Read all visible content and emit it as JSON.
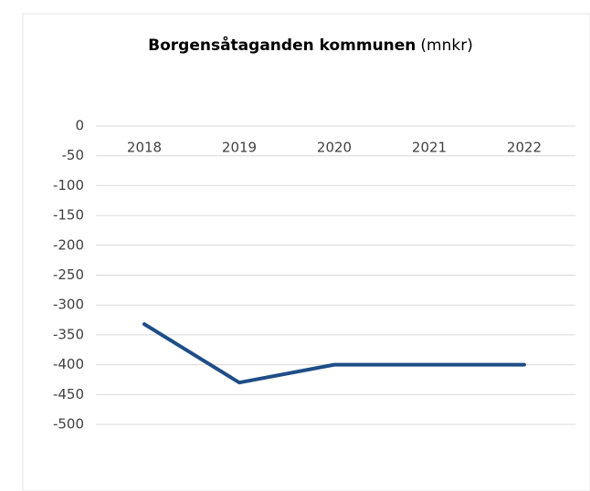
{
  "chart_data": {
    "type": "line",
    "title": "Borgensåtaganden kommunen",
    "title_unit": "(mnkr)",
    "categories": [
      "2018",
      "2019",
      "2020",
      "2021",
      "2022"
    ],
    "series": [
      {
        "name": "Borgensåtaganden kommunen",
        "color": "#1f4e87",
        "values": [
          -332,
          -430,
          -400,
          -400,
          -400
        ]
      }
    ],
    "ylim": [
      -500,
      0
    ],
    "yticks": [
      0,
      -50,
      -100,
      -150,
      -200,
      -250,
      -300,
      -350,
      -400,
      -450,
      -500
    ],
    "grid": true
  }
}
